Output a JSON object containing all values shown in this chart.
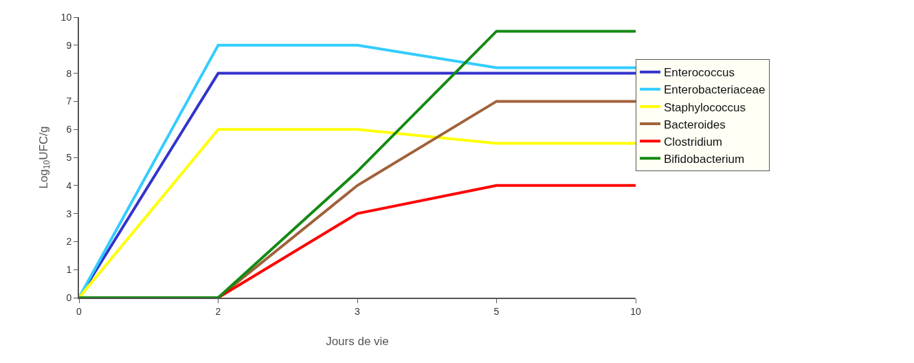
{
  "chart_data": {
    "type": "line",
    "xlabel": "Jours de vie",
    "ylabel": "Log$_{10}$UFC/g",
    "categories": [
      "0",
      "2",
      "3",
      "5",
      "10"
    ],
    "ylim": [
      0,
      10
    ],
    "yticks": [
      0,
      1,
      2,
      3,
      4,
      5,
      6,
      7,
      8,
      9,
      10
    ],
    "legend": "right",
    "marker": "none",
    "line_style": "solid",
    "series": [
      {
        "name": "Enterococcus",
        "color": "#3333cc",
        "values": [
          0,
          8,
          8,
          8,
          8
        ]
      },
      {
        "name": "Enterobacteriaceae",
        "color": "#33ccff",
        "values": [
          0,
          9,
          9,
          8.2,
          8.2
        ]
      },
      {
        "name": "Staphylococcus",
        "color": "#ffff00",
        "values": [
          0,
          6,
          6,
          5.5,
          5.5
        ]
      },
      {
        "name": "Bacteroides",
        "color": "#a0623a",
        "values": [
          0,
          0,
          4,
          7,
          7
        ]
      },
      {
        "name": "Clostridium",
        "color": "#ff0000",
        "values": [
          0,
          0,
          3,
          4,
          4
        ]
      },
      {
        "name": "Bifidobacterium",
        "color": "#138a13",
        "values": [
          0,
          0,
          4.5,
          9.5,
          9.5
        ]
      }
    ]
  }
}
